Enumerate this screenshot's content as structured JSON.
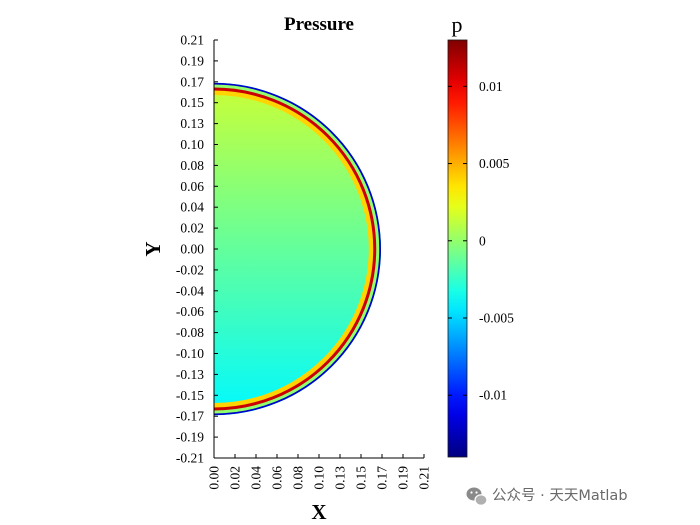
{
  "chart_data": {
    "type": "heatmap",
    "title": "Pressure",
    "xlabel": "X",
    "ylabel": "Y",
    "xlim": [
      0,
      0.21
    ],
    "ylim": [
      -0.21,
      0.21
    ],
    "x_ticks": [
      "0.00",
      "0.02",
      "0.04",
      "0.06",
      "0.08",
      "0.10",
      "0.13",
      "0.15",
      "0.17",
      "0.19",
      "0.21"
    ],
    "y_ticks": [
      "0.21",
      "0.19",
      "0.17",
      "0.15",
      "0.13",
      "0.10",
      "0.08",
      "0.06",
      "0.04",
      "0.02",
      "0.00",
      "-0.02",
      "-0.04",
      "-0.06",
      "-0.08",
      "-0.10",
      "-0.13",
      "-0.15",
      "-0.17",
      "-0.19",
      "-0.21"
    ],
    "colorbar": {
      "label": "p",
      "colormap": "jet",
      "range": [
        -0.014,
        0.013
      ],
      "ticks": [
        {
          "value": 0.01,
          "label": "0.01"
        },
        {
          "value": 0.005,
          "label": "0.005"
        },
        {
          "value": 0,
          "label": "0"
        },
        {
          "value": -0.005,
          "label": "-0.005"
        },
        {
          "value": -0.01,
          "label": "-0.01"
        }
      ]
    },
    "field": {
      "shape": "half-disk",
      "radius": 0.167,
      "interior_top": 0.0015,
      "interior_bottom": -0.004,
      "wave_fronts": [
        {
          "r": 0.157,
          "p": 0.004
        },
        {
          "r": 0.1595,
          "p": 0.011
        },
        {
          "r": 0.1625,
          "p": 0.0
        },
        {
          "r": 0.165,
          "p": -0.012
        },
        {
          "r": 0.1668,
          "p": -0.004
        }
      ]
    }
  },
  "watermark": {
    "icon": "wechat-icon",
    "text": "公众号 · 天天Matlab"
  }
}
